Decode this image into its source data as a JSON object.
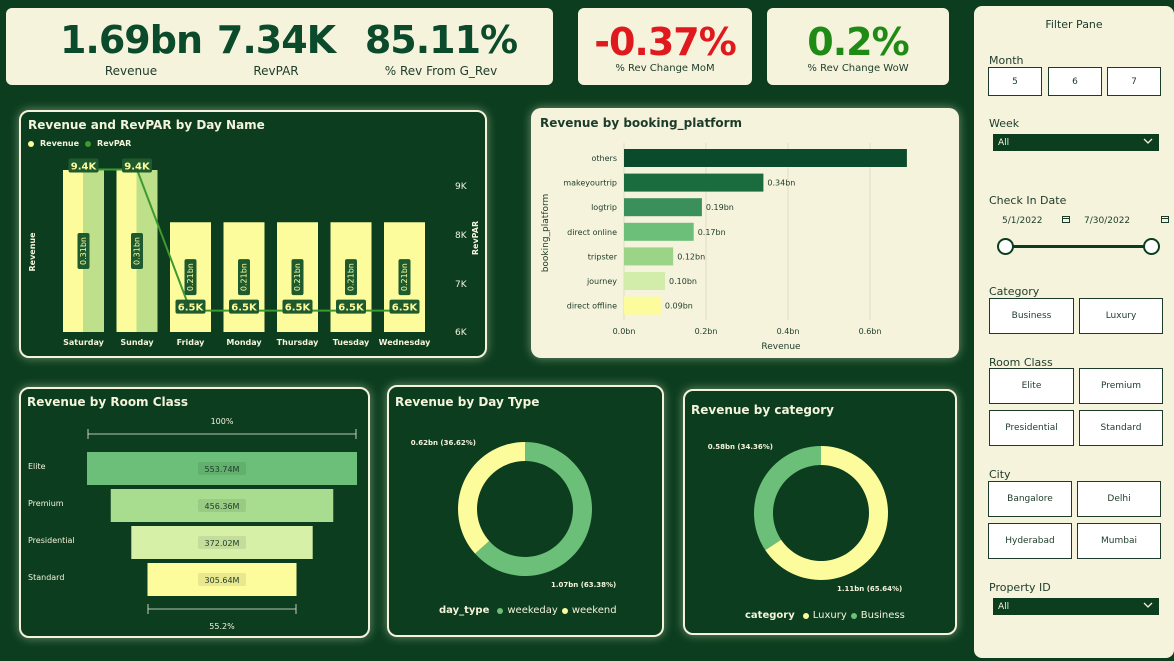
{
  "home_icon": "home-icon",
  "kpis": {
    "revenue": {
      "value": "1.69bn",
      "label": "Revenue"
    },
    "revpar": {
      "value": "7.34K",
      "label": "RevPAR"
    },
    "rev_pct": {
      "value": "85.11%",
      "label": "% Rev From G_Rev"
    },
    "mom": {
      "value": "-0.37%",
      "label": "% Rev Change MoM",
      "color": "#e0191e"
    },
    "wow": {
      "value": "0.2%",
      "label": "% Rev Change WoW",
      "color": "#1f8a14"
    }
  },
  "day_chart": {
    "title": "Revenue and RevPAR by Day Name",
    "legend": [
      "Revenue",
      "RevPAR"
    ],
    "ylabel_left": "Revenue",
    "ylabel_right": "RevPAR",
    "right_ticks": [
      "9K",
      "8K",
      "7K",
      "6K"
    ]
  },
  "platform_chart": {
    "title": "Revenue by booking_platform",
    "ylabel": "booking_platform",
    "xlabel": "Revenue",
    "x_ticks": [
      "0.0bn",
      "0.2bn",
      "0.4bn",
      "0.6bn"
    ]
  },
  "room_chart": {
    "title": "Revenue by Room Class",
    "top_pct": "100%",
    "bottom_pct": "55.2%"
  },
  "daytype_chart": {
    "title": "Revenue by Day Type",
    "legend_title": "day_type",
    "legend": [
      "weekeday",
      "weekend"
    ]
  },
  "category_chart": {
    "title": "Revenue by category",
    "legend_title": "category",
    "legend": [
      "Luxury",
      "Business"
    ]
  },
  "chart_data": [
    {
      "type": "bar",
      "title": "Revenue and RevPAR by Day Name",
      "categories": [
        "Saturday",
        "Sunday",
        "Friday",
        "Monday",
        "Thursday",
        "Tuesday",
        "Wednesday"
      ],
      "series": [
        {
          "name": "Revenue",
          "values": [
            0.31,
            0.31,
            0.21,
            0.21,
            0.21,
            0.21,
            0.21
          ],
          "labels": [
            "0.31bn",
            "0.31bn",
            "0.21bn",
            "0.21bn",
            "0.21bn",
            "0.21bn",
            "0.21bn"
          ],
          "color": "#fdfc9c"
        },
        {
          "name": "RevPAR",
          "values": [
            9.4,
            9.4,
            6.5,
            6.5,
            6.5,
            6.5,
            6.5
          ],
          "labels": [
            "9.4K",
            "9.4K",
            "6.5K",
            "6.5K",
            "6.5K",
            "6.5K",
            "6.5K"
          ],
          "color": "#3d9a2e"
        }
      ],
      "ylim_right": [
        6,
        9.5
      ]
    },
    {
      "type": "bar",
      "title": "Revenue by booking_platform",
      "categories": [
        "others",
        "makeyourtrip",
        "logtrip",
        "direct online",
        "tripster",
        "journey",
        "direct offline"
      ],
      "values": [
        0.69,
        0.34,
        0.19,
        0.17,
        0.12,
        0.1,
        0.09
      ],
      "labels": [
        "",
        "0.34bn",
        "0.19bn",
        "0.17bn",
        "0.12bn",
        "0.10bn",
        "0.09bn"
      ],
      "colors": [
        "#0b4a2a",
        "#1a6b3e",
        "#3a8f5a",
        "#6cbf78",
        "#9bd486",
        "#d2ecaa",
        "#fdfc9c"
      ],
      "xlim": [
        0,
        0.7
      ]
    },
    {
      "type": "bar",
      "title": "Revenue by Room Class",
      "categories": [
        "Elite",
        "Premium",
        "Presidential",
        "Standard"
      ],
      "values": [
        553.74,
        456.36,
        372.02,
        305.64
      ],
      "labels": [
        "553.74M",
        "456.36M",
        "372.02M",
        "305.64M"
      ],
      "colors": [
        "#6cbf78",
        "#a8dd8f",
        "#d6f0a8",
        "#fdfc9c"
      ]
    },
    {
      "type": "pie",
      "title": "Revenue by Day Type",
      "categories": [
        "weekeday",
        "weekend"
      ],
      "values": [
        63.38,
        36.62
      ],
      "labels": [
        "1.07bn (63.38%)",
        "0.62bn (36.62%)"
      ],
      "colors": [
        "#6cbf78",
        "#fdfc9c"
      ]
    },
    {
      "type": "pie",
      "title": "Revenue by category",
      "categories": [
        "Luxury",
        "Business"
      ],
      "values": [
        65.64,
        34.36
      ],
      "labels": [
        "1.11bn (65.64%)",
        "0.58bn (34.36%)"
      ],
      "colors": [
        "#fdfc9c",
        "#6cbf78"
      ]
    }
  ],
  "filter_pane": {
    "title": "Filter Pane",
    "month_label": "Month",
    "months": [
      "5",
      "6",
      "7"
    ],
    "week_label": "Week",
    "week_value": "All",
    "checkin_label": "Check In Date",
    "date_start": "5/1/2022",
    "date_end": "7/30/2022",
    "category_label": "Category",
    "categories": [
      "Business",
      "Luxury"
    ],
    "room_label": "Room Class",
    "rooms": [
      "Elite",
      "Premium",
      "Presidential",
      "Standard"
    ],
    "city_label": "City",
    "cities": [
      "Bangalore",
      "Delhi",
      "Hyderabad",
      "Mumbai"
    ],
    "property_label": "Property ID",
    "property_value": "All"
  }
}
